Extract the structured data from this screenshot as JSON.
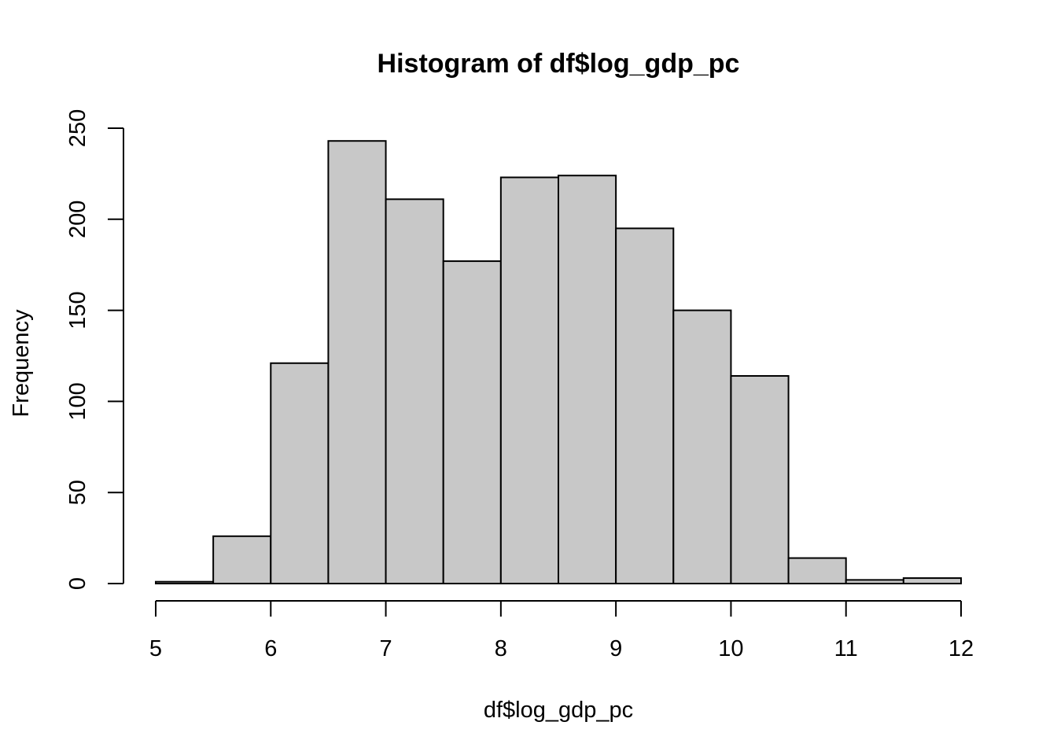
{
  "chart_data": {
    "type": "bar",
    "title": "Histogram of df$log_gdp_pc",
    "xlabel": "df$log_gdp_pc",
    "ylabel": "Frequency",
    "xlim": [
      5,
      12
    ],
    "ylim": [
      0,
      250
    ],
    "x_ticks": [
      "5",
      "6",
      "7",
      "8",
      "9",
      "10",
      "11",
      "12"
    ],
    "y_ticks": [
      "0",
      "50",
      "100",
      "150",
      "200",
      "250"
    ],
    "grid": false,
    "legend": "none",
    "bar_color": "#c8c8c8",
    "bins": [
      {
        "start": 5.0,
        "end": 5.5,
        "count": 1
      },
      {
        "start": 5.5,
        "end": 6.0,
        "count": 26
      },
      {
        "start": 6.0,
        "end": 6.5,
        "count": 121
      },
      {
        "start": 6.5,
        "end": 7.0,
        "count": 243
      },
      {
        "start": 7.0,
        "end": 7.5,
        "count": 211
      },
      {
        "start": 7.5,
        "end": 8.0,
        "count": 177
      },
      {
        "start": 8.0,
        "end": 8.5,
        "count": 223
      },
      {
        "start": 8.5,
        "end": 9.0,
        "count": 224
      },
      {
        "start": 9.0,
        "end": 9.5,
        "count": 195
      },
      {
        "start": 9.5,
        "end": 10.0,
        "count": 150
      },
      {
        "start": 10.0,
        "end": 10.5,
        "count": 114
      },
      {
        "start": 10.5,
        "end": 11.0,
        "count": 14
      },
      {
        "start": 11.0,
        "end": 11.5,
        "count": 2
      },
      {
        "start": 11.5,
        "end": 12.0,
        "count": 3
      }
    ]
  }
}
